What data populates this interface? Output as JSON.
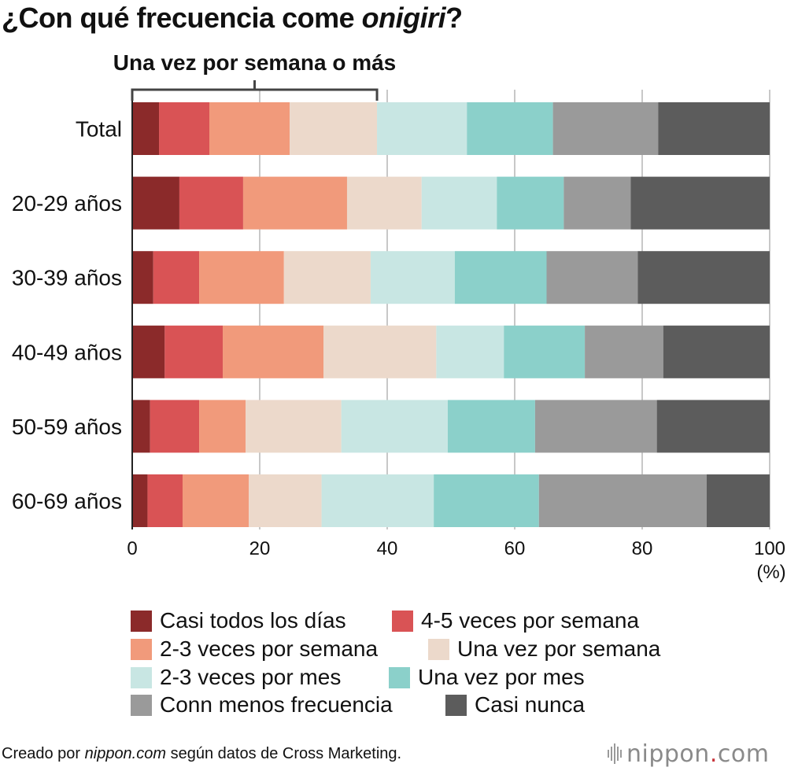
{
  "title": {
    "prefix": "¿Con qué frecuencia come ",
    "emphasis": "onigiri",
    "suffix": "?"
  },
  "bracket_label": "Una vez por semana o más",
  "colors": [
    "#8b2a2a",
    "#d95355",
    "#f19a7b",
    "#ecd9cb",
    "#c8e6e3",
    "#8bd0ca",
    "#9a9a9a",
    "#5c5c5c"
  ],
  "chart_data": {
    "type": "bar",
    "orientation": "horizontal",
    "stacked": true,
    "title": "¿Con qué frecuencia come onigiri?",
    "categories": [
      "Total",
      "20-29 años",
      "30-39 años",
      "40-49 años",
      "50-59 años",
      "60-69 años"
    ],
    "series": [
      {
        "name": "Casi todos los días",
        "values": [
          4.2,
          7.4,
          3.3,
          5.1,
          2.8,
          2.4
        ]
      },
      {
        "name": "4-5 veces por semana",
        "values": [
          7.9,
          10.0,
          7.2,
          9.1,
          7.7,
          5.5
        ]
      },
      {
        "name": "2-3 veces por semana",
        "values": [
          12.6,
          16.3,
          13.3,
          15.8,
          7.3,
          10.4
        ]
      },
      {
        "name": "Una vez por semana",
        "values": [
          13.7,
          11.7,
          13.6,
          17.7,
          15.0,
          11.4
        ]
      },
      {
        "name": "2-3 veces por mes",
        "values": [
          14.1,
          11.8,
          13.2,
          10.6,
          16.7,
          17.6
        ]
      },
      {
        "name": "Una vez por mes",
        "values": [
          13.5,
          10.5,
          14.4,
          12.7,
          13.7,
          16.5
        ]
      },
      {
        "name": "Conn menos frecuencia",
        "values": [
          16.5,
          10.5,
          14.3,
          12.3,
          19.1,
          26.3
        ]
      },
      {
        "name": "Casi nunca",
        "values": [
          17.5,
          21.8,
          20.7,
          16.7,
          17.7,
          9.9
        ]
      }
    ],
    "xlim": [
      0,
      100
    ],
    "xticks": [
      0,
      20,
      40,
      60,
      80,
      100
    ],
    "xunit": "(%)",
    "grid": true,
    "annotation": {
      "text": "Una vez por semana o más",
      "range": [
        0,
        38.4
      ]
    }
  },
  "legend_labels": [
    "Casi todos los días",
    "4-5 veces por semana",
    "2-3 veces por semana",
    "Una vez por semana",
    "2-3 veces por mes",
    "Una vez por mes",
    "Conn menos frecuencia",
    "Casi nunca"
  ],
  "footer": {
    "prefix": "Creado por ",
    "site": "nippon.com",
    "suffix": " según datos de Cross Marketing."
  },
  "logo": {
    "name": "nippon",
    "dot": ".",
    "tld": "com"
  }
}
